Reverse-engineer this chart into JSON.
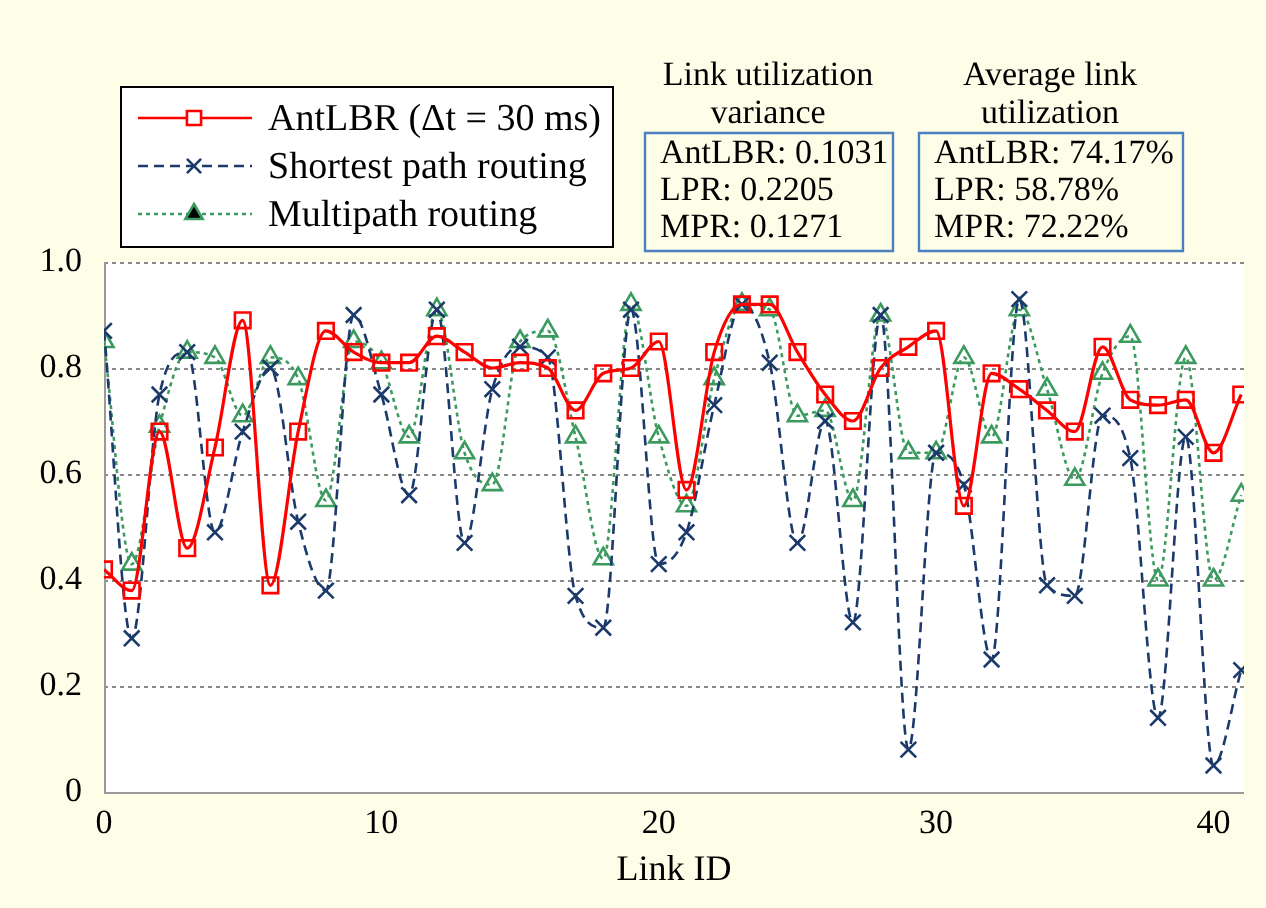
{
  "chart_data": {
    "type": "line",
    "xlabel": "Link ID",
    "x": [
      0,
      1,
      2,
      3,
      4,
      5,
      6,
      7,
      8,
      9,
      10,
      11,
      12,
      13,
      14,
      15,
      16,
      17,
      18,
      19,
      20,
      21,
      22,
      23,
      24,
      25,
      26,
      27,
      28,
      29,
      30,
      31,
      32,
      33,
      34,
      35,
      36,
      37,
      38,
      39,
      40,
      41
    ],
    "series": [
      {
        "name": "AntLBR (Δt = 30 ms)",
        "color": "#ff0000",
        "marker": "square",
        "line_style": "solid",
        "values": [
          0.42,
          0.38,
          0.68,
          0.46,
          0.65,
          0.89,
          0.39,
          0.68,
          0.87,
          0.83,
          0.81,
          0.81,
          0.86,
          0.83,
          0.8,
          0.81,
          0.8,
          0.72,
          0.79,
          0.8,
          0.85,
          0.57,
          0.83,
          0.92,
          0.92,
          0.83,
          0.75,
          0.7,
          0.8,
          0.84,
          0.87,
          0.54,
          0.79,
          0.76,
          0.72,
          0.68,
          0.84,
          0.74,
          0.73,
          0.74,
          0.64,
          0.75
        ]
      },
      {
        "name": "Shortest path routing",
        "color": "#1b3a6b",
        "marker": "cross",
        "line_style": "dashed",
        "values": [
          0.87,
          0.29,
          0.75,
          0.83,
          0.49,
          0.68,
          0.8,
          0.51,
          0.38,
          0.9,
          0.75,
          0.56,
          0.91,
          0.47,
          0.76,
          0.84,
          0.82,
          0.37,
          0.31,
          0.91,
          0.43,
          0.49,
          0.73,
          0.92,
          0.81,
          0.47,
          0.7,
          0.32,
          0.9,
          0.08,
          0.64,
          0.58,
          0.25,
          0.93,
          0.39,
          0.37,
          0.71,
          0.63,
          0.14,
          0.67,
          0.05,
          0.23
        ]
      },
      {
        "name": "Multipath routing",
        "color": "#3c9a5f",
        "marker": "triangle",
        "line_style": "dotted",
        "values": [
          0.85,
          0.43,
          0.69,
          0.83,
          0.82,
          0.71,
          0.82,
          0.78,
          0.55,
          0.85,
          0.81,
          0.67,
          0.91,
          0.64,
          0.58,
          0.85,
          0.87,
          0.67,
          0.44,
          0.92,
          0.67,
          0.54,
          0.78,
          0.92,
          0.91,
          0.71,
          0.72,
          0.55,
          0.9,
          0.64,
          0.64,
          0.82,
          0.67,
          0.91,
          0.76,
          0.59,
          0.79,
          0.86,
          0.4,
          0.82,
          0.4,
          0.56
        ]
      }
    ],
    "xlim": [
      0,
      41.1
    ],
    "xticks": [
      0,
      10,
      20,
      30,
      40
    ],
    "ylim": [
      0,
      1
    ],
    "yticks": [
      {
        "value": 0,
        "label": "0"
      },
      {
        "value": 0.2,
        "label": "0.2"
      },
      {
        "value": 0.4,
        "label": "0.4"
      },
      {
        "value": 0.6,
        "label": "0.6"
      },
      {
        "value": 0.8,
        "label": "0.8"
      },
      {
        "value": 1,
        "label": "1.0"
      }
    ],
    "grid": "y",
    "legend": "top left",
    "annotations": [
      "Link utilization\nvariance",
      "AntLBR: 0.1031\nLPR: 0.2205\nMPR: 0.1271",
      "Average link\nutilization",
      "AntLBR: 74.17%\nLPR: 58.78%\nMPR: 72.22%"
    ]
  }
}
